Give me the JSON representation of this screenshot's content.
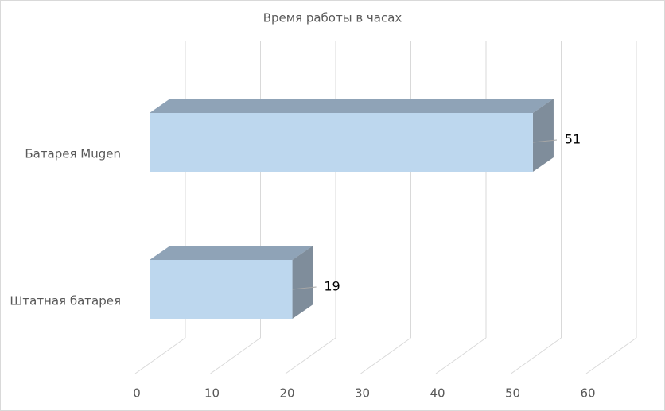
{
  "chart_data": {
    "type": "bar3d_horizontal",
    "title": "Время работы в часах",
    "categories": [
      "Батарея Mugen",
      "Штатная батарея"
    ],
    "values": [
      51,
      19
    ],
    "color": "#bdd7ee",
    "xlim": [
      0,
      60
    ],
    "xticks": [
      0,
      10,
      20,
      30,
      40,
      50,
      60
    ],
    "grid": true
  }
}
